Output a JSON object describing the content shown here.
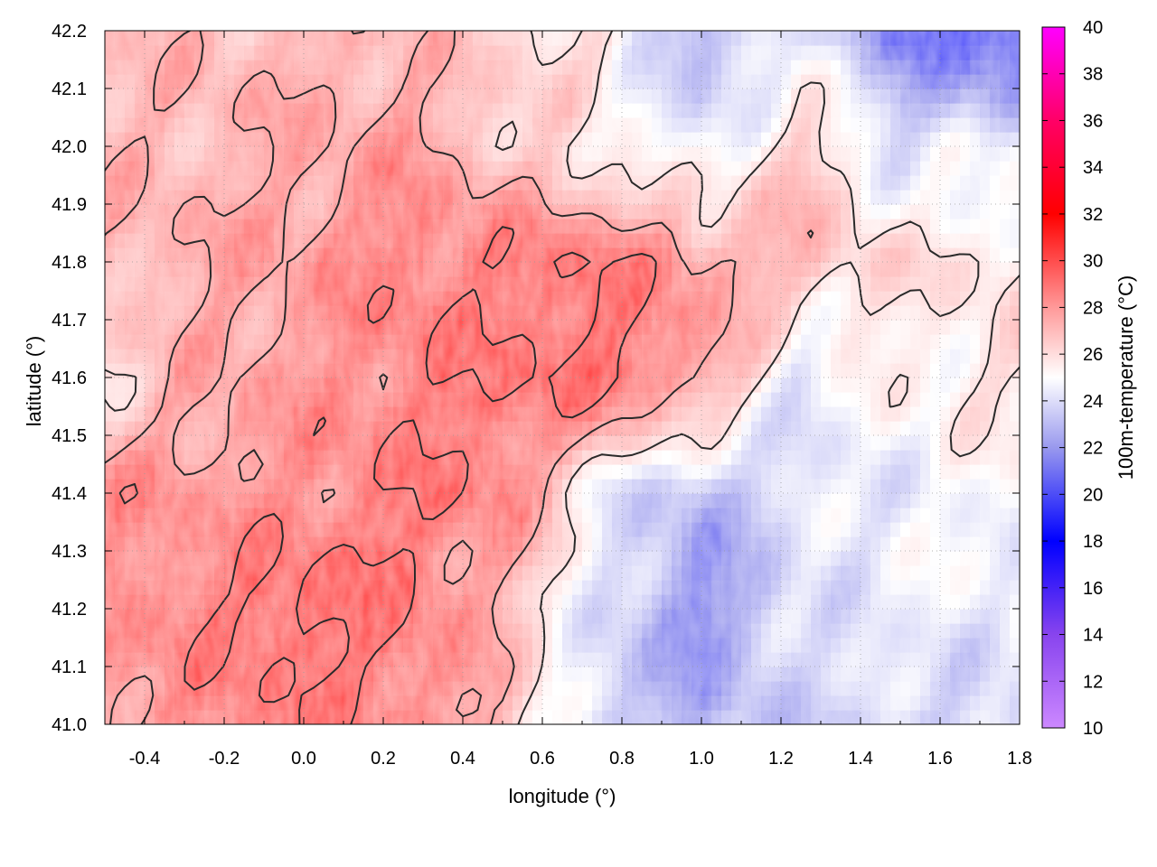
{
  "chart_data": {
    "type": "heatmap",
    "xlabel": "longitude (°)",
    "ylabel": "latitude (°)",
    "colorbar_label": "100m-temperature (°C)",
    "xlim": [
      -0.5,
      1.8
    ],
    "ylim": [
      41.0,
      42.2
    ],
    "x_ticks": [
      -0.4,
      -0.2,
      0.0,
      0.2,
      0.4,
      0.6,
      0.8,
      1.0,
      1.2,
      1.4,
      1.6,
      1.8
    ],
    "x_tick_labels": [
      "-0.4",
      "-0.2",
      "0.0",
      "0.2",
      "0.4",
      "0.6",
      "0.8",
      "1.0",
      "1.2",
      "1.4",
      "1.6",
      "1.8"
    ],
    "y_ticks": [
      41.0,
      41.1,
      41.2,
      41.3,
      41.4,
      41.5,
      41.6,
      41.7,
      41.8,
      41.9,
      42.0,
      42.1,
      42.2
    ],
    "y_tick_labels": [
      "41.0",
      "41.1",
      "41.2",
      "41.3",
      "41.4",
      "41.5",
      "41.6",
      "41.7",
      "41.8",
      "41.9",
      "42.0",
      "42.1",
      "42.2"
    ],
    "colorbar_range": [
      10,
      40
    ],
    "colorbar_ticks": [
      10,
      12,
      14,
      16,
      18,
      20,
      22,
      24,
      26,
      28,
      30,
      32,
      34,
      36,
      38,
      40
    ],
    "colorbar_tick_labels": [
      "10",
      "12",
      "14",
      "16",
      "18",
      "20",
      "22",
      "24",
      "26",
      "28",
      "30",
      "32",
      "34",
      "36",
      "38",
      "40"
    ],
    "colormap_stops": [
      {
        "value": 10,
        "color": "#cc88ff"
      },
      {
        "value": 14,
        "color": "#8844ee"
      },
      {
        "value": 18,
        "color": "#0000ff"
      },
      {
        "value": 22,
        "color": "#9999ee"
      },
      {
        "value": 25,
        "color": "#ffffff"
      },
      {
        "value": 28,
        "color": "#ff9999"
      },
      {
        "value": 32,
        "color": "#ff0000"
      },
      {
        "value": 36,
        "color": "#ff0066"
      },
      {
        "value": 40,
        "color": "#ff00ff"
      }
    ],
    "grid": true,
    "contour_levels": [
      26,
      28,
      30
    ],
    "field": {
      "description_units": "°C",
      "lon": [
        -0.5,
        -0.25,
        0.0,
        0.25,
        0.5,
        0.75,
        1.0,
        1.25,
        1.5,
        1.8
      ],
      "lat": [
        41.0,
        41.2,
        41.4,
        41.6,
        41.8,
        42.0,
        42.2
      ],
      "values": [
        [
          28.5,
          29.0,
          29.8,
          29.2,
          27.8,
          23.0,
          22.5,
          23.5,
          23.5,
          23.5
        ],
        [
          28.8,
          29.5,
          30.5,
          30.0,
          27.5,
          24.0,
          21.0,
          24.0,
          24.5,
          24.5
        ],
        [
          29.0,
          28.5,
          29.0,
          29.8,
          29.5,
          24.5,
          22.5,
          24.0,
          24.5,
          25.0
        ],
        [
          26.0,
          28.0,
          28.5,
          29.5,
          30.0,
          30.5,
          28.5,
          24.0,
          25.5,
          26.0
        ],
        [
          27.5,
          28.0,
          28.5,
          29.5,
          29.5,
          30.0,
          28.5,
          27.5,
          26.0,
          26.0
        ],
        [
          27.5,
          27.5,
          28.0,
          28.5,
          27.0,
          25.5,
          24.0,
          27.0,
          24.0,
          24.5
        ],
        [
          27.0,
          27.5,
          27.5,
          27.5,
          26.5,
          26.0,
          22.0,
          24.5,
          20.5,
          19.0
        ]
      ]
    }
  }
}
